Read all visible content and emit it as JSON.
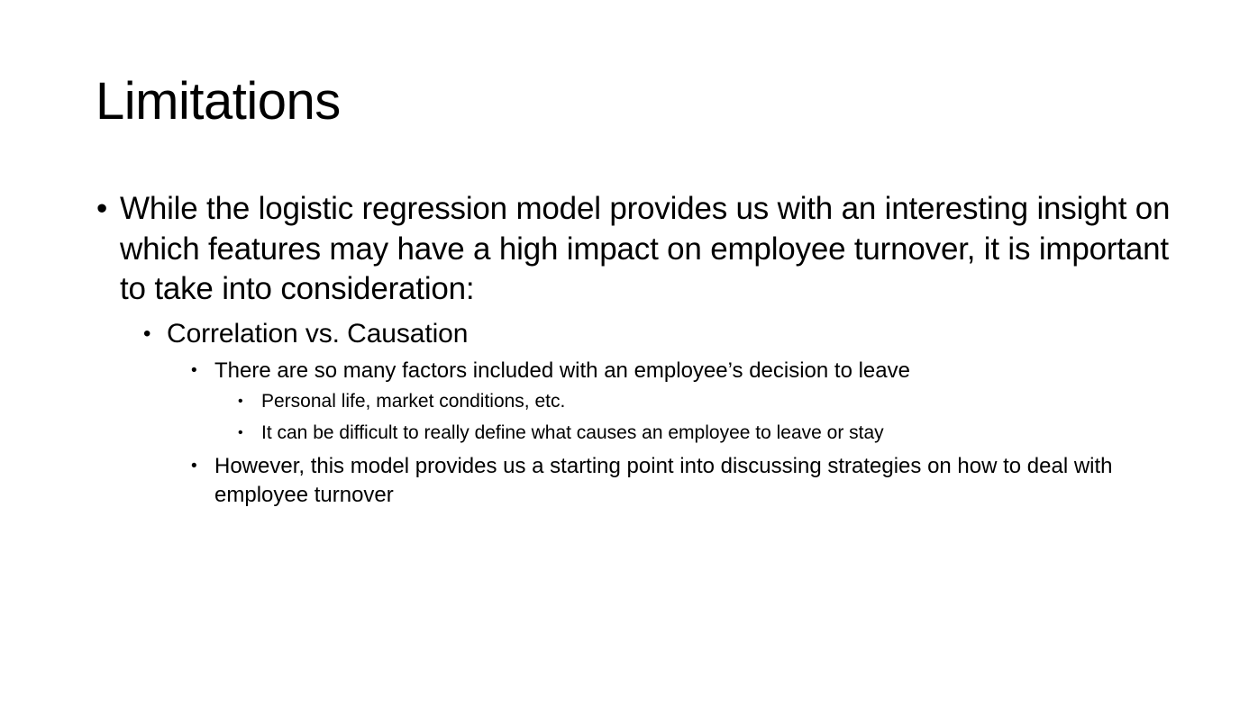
{
  "slide": {
    "title": "Limitations",
    "bullet_glyph": "•",
    "items": [
      {
        "level": 1,
        "text": "While the logistic regression model provides us with an interesting insight on which features may have a high impact on employee turnover, it is important to take into consideration:"
      },
      {
        "level": 2,
        "text": "Correlation vs. Causation"
      },
      {
        "level": 3,
        "text": "There are so many factors included with an employee’s decision to leave"
      },
      {
        "level": 4,
        "text": "Personal life, market conditions, etc."
      },
      {
        "level": 4,
        "text": "It can be difficult to really define what causes an employee to leave or stay"
      },
      {
        "level": 3,
        "text": "However, this model provides us a starting point into discussing strategies on how to deal with employee turnover"
      }
    ]
  }
}
